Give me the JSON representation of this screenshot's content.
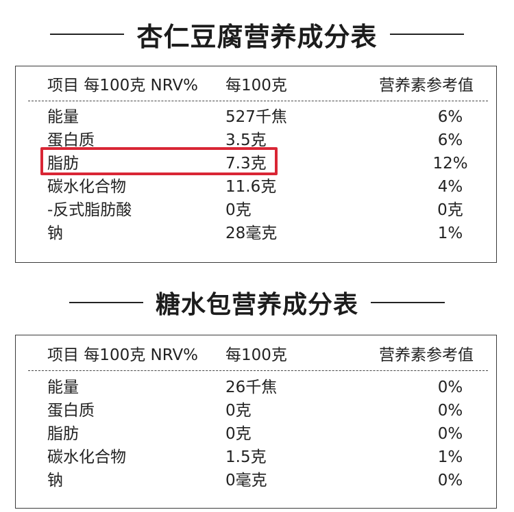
{
  "tables": [
    {
      "title": "杏仁豆腐营养成分表",
      "header": {
        "item": "项目 每100克 NRV%",
        "per100": "每100克",
        "nrv": "营养素参考值"
      },
      "rows": [
        {
          "name": "能量",
          "value": "527千焦",
          "nrv": "6%"
        },
        {
          "name": "蛋白质",
          "value": "3.5克",
          "nrv": "6%"
        },
        {
          "name": "脂肪",
          "value": "7.3克",
          "nrv": "12%",
          "highlighted": true
        },
        {
          "name": "碳水化合物",
          "value": "11.6克",
          "nrv": "4%"
        },
        {
          "name": "-反式脂肪酸",
          "value": "0克",
          "nrv": "0克"
        },
        {
          "name": "钠",
          "value": "28毫克",
          "nrv": "1%"
        }
      ],
      "highlight_color": "#d92635"
    },
    {
      "title": "糖水包营养成分表",
      "header": {
        "item": "项目 每100克 NRV%",
        "per100": "每100克",
        "nrv": "营养素参考值"
      },
      "rows": [
        {
          "name": "能量",
          "value": "26千焦",
          "nrv": "0%"
        },
        {
          "name": "蛋白质",
          "value": "0克",
          "nrv": "0%"
        },
        {
          "name": "脂肪",
          "value": "0克",
          "nrv": "0%"
        },
        {
          "name": "碳水化合物",
          "value": "1.5克",
          "nrv": "1%"
        },
        {
          "name": "钠",
          "value": "0毫克",
          "nrv": "0%"
        }
      ]
    }
  ]
}
